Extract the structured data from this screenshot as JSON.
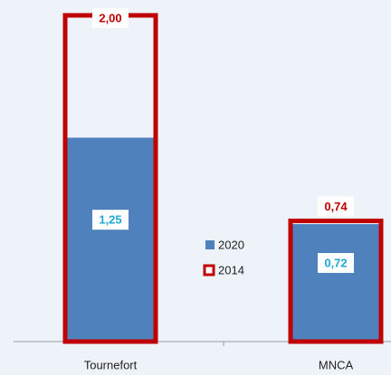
{
  "chart_data": {
    "type": "bar",
    "categories": [
      "Tournefort",
      "MNCA"
    ],
    "series": [
      {
        "name": "2020",
        "color": "#4f81bd",
        "values": [
          1.25,
          0.72
        ],
        "value_labels": [
          "1,25",
          "0,72"
        ],
        "label_color": "#1fa7d8"
      },
      {
        "name": "2014",
        "color": "#c00000",
        "values": [
          2.0,
          0.74
        ],
        "value_labels": [
          "2,00",
          "0,74"
        ],
        "label_color": "#c00000"
      }
    ],
    "ylim": [
      0,
      2
    ]
  }
}
